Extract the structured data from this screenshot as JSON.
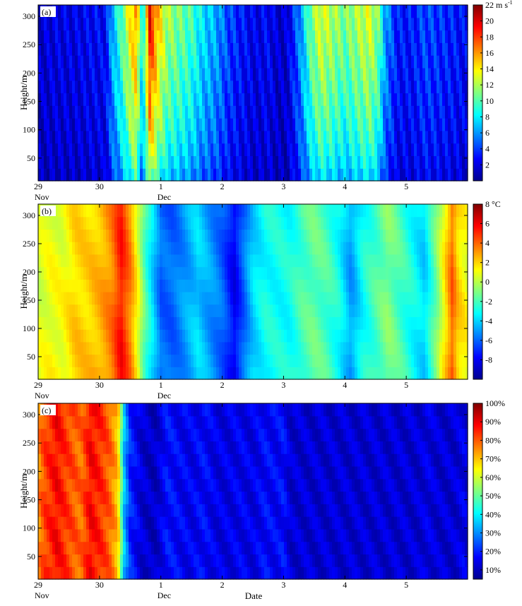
{
  "chart_data": [
    {
      "type": "heatmap",
      "panel_label": "(a)",
      "ylabel": "Height/m",
      "yticks": [
        50,
        100,
        150,
        200,
        250,
        300
      ],
      "ylim": [
        10,
        320
      ],
      "xlim": [
        29,
        36
      ],
      "xticks": [
        {
          "value": 29,
          "label": "29",
          "sub": "Nov"
        },
        {
          "value": 30,
          "label": "30",
          "sub": ""
        },
        {
          "value": 31,
          "label": "1",
          "sub": "Dec"
        },
        {
          "value": 32,
          "label": "2",
          "sub": ""
        },
        {
          "value": 33,
          "label": "3",
          "sub": ""
        },
        {
          "value": 34,
          "label": "4",
          "sub": ""
        },
        {
          "value": 35,
          "label": "5",
          "sub": ""
        }
      ],
      "colorbar": {
        "min": 0,
        "max": 22,
        "ticks": [
          2,
          4,
          6,
          8,
          10,
          12,
          14,
          16,
          18,
          20,
          22
        ],
        "unit": "m s-1"
      },
      "time_profile": [
        [
          29.0,
          1.5
        ],
        [
          29.3,
          2.0
        ],
        [
          29.6,
          2.0
        ],
        [
          29.9,
          2.5
        ],
        [
          30.1,
          2.5
        ],
        [
          30.2,
          6
        ],
        [
          30.35,
          9
        ],
        [
          30.5,
          13
        ],
        [
          30.6,
          15
        ],
        [
          30.7,
          7
        ],
        [
          30.82,
          18
        ],
        [
          30.95,
          14
        ],
        [
          31.1,
          11
        ],
        [
          31.3,
          10
        ],
        [
          31.5,
          9
        ],
        [
          31.7,
          7
        ],
        [
          31.9,
          6
        ],
        [
          32.1,
          4
        ],
        [
          32.3,
          3
        ],
        [
          32.55,
          2
        ],
        [
          32.75,
          2.5
        ],
        [
          32.9,
          1.5
        ],
        [
          33.05,
          1.5
        ],
        [
          33.25,
          5
        ],
        [
          33.45,
          10
        ],
        [
          33.6,
          12
        ],
        [
          33.8,
          11
        ],
        [
          34.0,
          10
        ],
        [
          34.2,
          11
        ],
        [
          34.4,
          12
        ],
        [
          34.55,
          10
        ],
        [
          34.65,
          6
        ],
        [
          34.85,
          3
        ],
        [
          35.1,
          3
        ],
        [
          35.3,
          4
        ],
        [
          35.55,
          3.5
        ],
        [
          35.8,
          3
        ],
        [
          36.0,
          2.5
        ]
      ]
    },
    {
      "type": "heatmap",
      "panel_label": "(b)",
      "ylabel": "Height/m",
      "yticks": [
        50,
        100,
        150,
        200,
        250,
        300
      ],
      "ylim": [
        10,
        320
      ],
      "xlim": [
        29,
        36
      ],
      "xticks": [
        {
          "value": 29,
          "label": "29",
          "sub": "Nov"
        },
        {
          "value": 30,
          "label": "30",
          "sub": ""
        },
        {
          "value": 31,
          "label": "1",
          "sub": "Dec"
        },
        {
          "value": 32,
          "label": "2",
          "sub": ""
        },
        {
          "value": 33,
          "label": "3",
          "sub": ""
        },
        {
          "value": 34,
          "label": "4",
          "sub": ""
        },
        {
          "value": 35,
          "label": "5",
          "sub": ""
        }
      ],
      "colorbar": {
        "min": -10,
        "max": 8,
        "ticks": [
          -8,
          -6,
          -4,
          -2,
          0,
          2,
          4,
          6,
          8
        ],
        "unit": "°C"
      },
      "time_profile": [
        [
          29.0,
          0.5
        ],
        [
          29.2,
          1.0
        ],
        [
          29.4,
          1.0
        ],
        [
          29.6,
          2.0
        ],
        [
          29.8,
          2.0
        ],
        [
          30.0,
          2.5
        ],
        [
          30.2,
          3.5
        ],
        [
          30.35,
          5.5
        ],
        [
          30.5,
          3.5
        ],
        [
          30.6,
          1.5
        ],
        [
          30.75,
          -2
        ],
        [
          31.0,
          -6
        ],
        [
          31.2,
          -6
        ],
        [
          31.4,
          -5
        ],
        [
          31.6,
          -4
        ],
        [
          31.8,
          -5
        ],
        [
          32.0,
          -6
        ],
        [
          32.2,
          -8
        ],
        [
          32.35,
          -6
        ],
        [
          32.5,
          -4
        ],
        [
          32.7,
          -3
        ],
        [
          32.9,
          -3
        ],
        [
          33.1,
          -3
        ],
        [
          33.3,
          -2
        ],
        [
          33.5,
          -1.5
        ],
        [
          33.7,
          -2
        ],
        [
          33.9,
          -3
        ],
        [
          34.1,
          -5
        ],
        [
          34.3,
          -3
        ],
        [
          34.5,
          -2
        ],
        [
          34.7,
          -1
        ],
        [
          34.9,
          -2
        ],
        [
          35.1,
          -3
        ],
        [
          35.3,
          -4
        ],
        [
          35.5,
          -1
        ],
        [
          35.65,
          2
        ],
        [
          35.75,
          4
        ],
        [
          35.85,
          2
        ],
        [
          36.0,
          1
        ]
      ]
    },
    {
      "type": "heatmap",
      "panel_label": "(c)",
      "ylabel": "Height/m",
      "xlabel": "Date",
      "yticks": [
        50,
        100,
        150,
        200,
        250,
        300
      ],
      "ylim": [
        10,
        320
      ],
      "xlim": [
        29,
        36
      ],
      "xticks": [
        {
          "value": 29,
          "label": "29",
          "sub": "Nov"
        },
        {
          "value": 30,
          "label": "30",
          "sub": ""
        },
        {
          "value": 31,
          "label": "1",
          "sub": "Dec"
        },
        {
          "value": 32,
          "label": "2",
          "sub": ""
        },
        {
          "value": 33,
          "label": "3",
          "sub": ""
        },
        {
          "value": 34,
          "label": "4",
          "sub": ""
        },
        {
          "value": 35,
          "label": "5",
          "sub": ""
        }
      ],
      "colorbar": {
        "min": 5,
        "max": 100,
        "ticks": [
          10,
          20,
          30,
          40,
          50,
          60,
          70,
          80,
          90,
          100
        ],
        "unit": "%"
      },
      "time_profile": [
        [
          29.0,
          75
        ],
        [
          29.1,
          82
        ],
        [
          29.3,
          88
        ],
        [
          29.5,
          82
        ],
        [
          29.7,
          78
        ],
        [
          29.85,
          88
        ],
        [
          30.0,
          85
        ],
        [
          30.15,
          80
        ],
        [
          30.3,
          70
        ],
        [
          30.4,
          35
        ],
        [
          30.5,
          20
        ],
        [
          30.7,
          12
        ],
        [
          30.9,
          10
        ],
        [
          31.1,
          18
        ],
        [
          31.3,
          16
        ],
        [
          31.5,
          15
        ],
        [
          31.7,
          17
        ],
        [
          31.9,
          14
        ],
        [
          32.1,
          14
        ],
        [
          32.3,
          15
        ],
        [
          32.5,
          14
        ],
        [
          32.7,
          17
        ],
        [
          32.9,
          16
        ],
        [
          33.0,
          18
        ],
        [
          33.1,
          12
        ],
        [
          33.5,
          12
        ],
        [
          34.0,
          12
        ],
        [
          34.5,
          12
        ],
        [
          35.0,
          12
        ],
        [
          35.2,
          12
        ],
        [
          35.35,
          14
        ],
        [
          35.5,
          12
        ],
        [
          35.8,
          12
        ],
        [
          35.95,
          15
        ],
        [
          36.0,
          12
        ]
      ]
    }
  ],
  "colors": {
    "jet": [
      "#00008f",
      "#0000ff",
      "#0080ff",
      "#00ffff",
      "#80ff80",
      "#ffff00",
      "#ff8000",
      "#ff0000",
      "#800000"
    ]
  }
}
